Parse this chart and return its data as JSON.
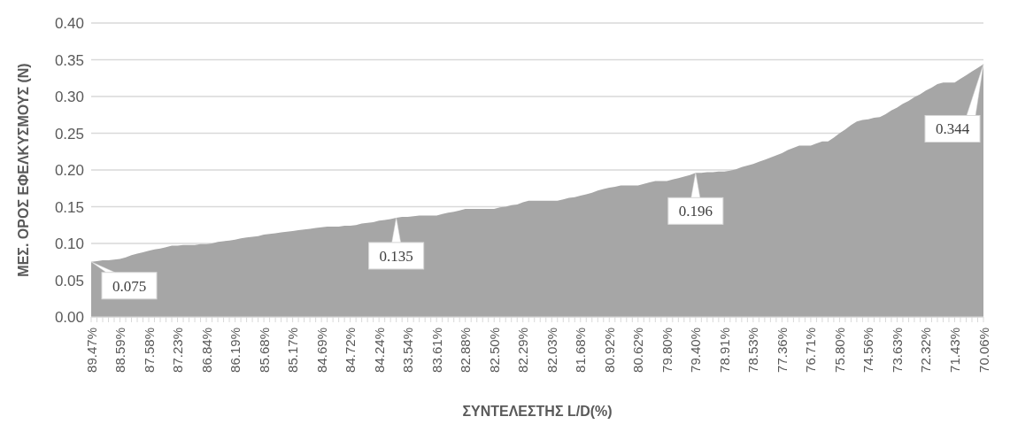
{
  "chart_data": {
    "type": "area",
    "xlabel": "ΣΥΝΤΕΛΕΣΤΗΣ L/D(%)",
    "ylabel": "ΜΕΣ. ΟΡΟΣ ΕΦΕΛΚΥΣΜΟΥΣ (N)",
    "color": "#a6a6a6",
    "ylim": [
      0,
      0.4
    ],
    "yticks": [
      {
        "value": 0,
        "label": "0.00"
      },
      {
        "value": 0.05,
        "label": "0.05"
      },
      {
        "value": 0.1,
        "label": "0.10"
      },
      {
        "value": 0.15,
        "label": "0.15"
      },
      {
        "value": 0.2,
        "label": "0.20"
      },
      {
        "value": 0.25,
        "label": "0.25"
      },
      {
        "value": 0.3,
        "label": "0.30"
      },
      {
        "value": 0.35,
        "label": "0.35"
      },
      {
        "value": 0.4,
        "label": "0.40"
      }
    ],
    "grid": "y",
    "categories": [
      "89.47%",
      null,
      null,
      null,
      null,
      "88.59%",
      null,
      null,
      null,
      null,
      "87.58%",
      null,
      null,
      null,
      null,
      "87.23%",
      null,
      null,
      null,
      null,
      "86.84%",
      null,
      null,
      null,
      null,
      "86.19%",
      null,
      null,
      null,
      null,
      "85.68%",
      null,
      null,
      null,
      null,
      "85.17%",
      null,
      null,
      null,
      null,
      "84.69%",
      null,
      null,
      null,
      null,
      "84.72%",
      null,
      null,
      null,
      null,
      "84.24%",
      null,
      null,
      null,
      null,
      "83.54%",
      null,
      null,
      null,
      null,
      "83.61%",
      null,
      null,
      null,
      null,
      "82.88%",
      null,
      null,
      null,
      null,
      "82.50%",
      null,
      null,
      null,
      null,
      "82.29%",
      null,
      null,
      null,
      null,
      "82.03%",
      null,
      null,
      null,
      null,
      "81.68%",
      null,
      null,
      null,
      null,
      "80.92%",
      null,
      null,
      null,
      null,
      "80.62%",
      null,
      null,
      null,
      null,
      "79.80%",
      null,
      null,
      null,
      null,
      "79.40%",
      null,
      null,
      null,
      null,
      "78.91%",
      null,
      null,
      null,
      null,
      "78.53%",
      null,
      null,
      null,
      null,
      "77.36%",
      null,
      null,
      null,
      null,
      "76.71%",
      null,
      null,
      null,
      null,
      "75.80%",
      null,
      null,
      null,
      null,
      "74.56%",
      null,
      null,
      null,
      null,
      "73.63%",
      null,
      null,
      null,
      null,
      "72.32%",
      null,
      null,
      null,
      null,
      "71.43%",
      null,
      null,
      null,
      null,
      "70.06%"
    ],
    "values": [
      0.075,
      0.076,
      0.077,
      0.077,
      0.078,
      0.079,
      0.081,
      0.084,
      0.086,
      0.088,
      0.09,
      0.092,
      0.093,
      0.095,
      0.097,
      0.097,
      0.098,
      0.098,
      0.098,
      0.099,
      0.099,
      0.1,
      0.102,
      0.103,
      0.104,
      0.105,
      0.107,
      0.108,
      0.109,
      0.11,
      0.112,
      0.113,
      0.114,
      0.115,
      0.116,
      0.117,
      0.118,
      0.119,
      0.12,
      0.121,
      0.122,
      0.123,
      0.123,
      0.123,
      0.124,
      0.124,
      0.125,
      0.127,
      0.128,
      0.129,
      0.131,
      0.132,
      0.133,
      0.135,
      0.136,
      0.136,
      0.137,
      0.138,
      0.138,
      0.138,
      0.138,
      0.14,
      0.142,
      0.143,
      0.145,
      0.147,
      0.147,
      0.147,
      0.147,
      0.147,
      0.147,
      0.149,
      0.15,
      0.152,
      0.153,
      0.156,
      0.158,
      0.158,
      0.158,
      0.158,
      0.158,
      0.158,
      0.16,
      0.162,
      0.163,
      0.165,
      0.167,
      0.169,
      0.172,
      0.174,
      0.176,
      0.177,
      0.179,
      0.179,
      0.179,
      0.179,
      0.181,
      0.183,
      0.185,
      0.185,
      0.185,
      0.187,
      0.189,
      0.191,
      0.193,
      0.196,
      0.196,
      0.197,
      0.197,
      0.198,
      0.198,
      0.199,
      0.201,
      0.204,
      0.206,
      0.208,
      0.211,
      0.214,
      0.217,
      0.22,
      0.223,
      0.227,
      0.23,
      0.233,
      0.233,
      0.233,
      0.236,
      0.239,
      0.239,
      0.244,
      0.25,
      0.255,
      0.261,
      0.266,
      0.268,
      0.269,
      0.271,
      0.272,
      0.276,
      0.281,
      0.285,
      0.29,
      0.294,
      0.299,
      0.303,
      0.308,
      0.312,
      0.317,
      0.319,
      0.319,
      0.319,
      0.324,
      0.329,
      0.334,
      0.339,
      0.344
    ],
    "value_labels": [
      "0.075",
      null,
      null,
      null,
      null,
      null,
      null,
      null,
      null,
      null,
      null,
      null,
      null,
      null,
      null,
      null,
      null,
      null,
      null,
      null,
      null,
      null,
      null,
      null,
      null,
      null,
      null,
      null,
      null,
      null,
      null,
      null,
      null,
      null,
      null,
      null,
      null,
      null,
      null,
      null,
      null,
      null,
      null,
      null,
      null,
      null,
      null,
      null,
      null,
      null,
      null,
      null,
      null,
      "0.135",
      null,
      null,
      null,
      null,
      null,
      null,
      null,
      null,
      null,
      null,
      null,
      null,
      null,
      null,
      null,
      null,
      null,
      null,
      null,
      null,
      null,
      null,
      null,
      null,
      null,
      null,
      null,
      null,
      null,
      null,
      null,
      null,
      null,
      null,
      null,
      null,
      null,
      null,
      null,
      null,
      null,
      null,
      null,
      null,
      null,
      null,
      null,
      null,
      null,
      null,
      null,
      "0.196",
      null,
      null,
      null,
      null,
      null,
      null,
      null,
      null,
      null,
      null,
      null,
      null,
      null,
      null,
      null,
      null,
      null,
      null,
      null,
      null,
      null,
      null,
      null,
      null,
      null,
      null,
      null,
      null,
      null,
      null,
      null,
      null,
      null,
      null,
      null,
      null,
      null,
      null,
      null,
      null,
      null,
      null,
      null,
      null,
      null,
      null,
      null,
      null,
      null,
      "0.344"
    ]
  }
}
